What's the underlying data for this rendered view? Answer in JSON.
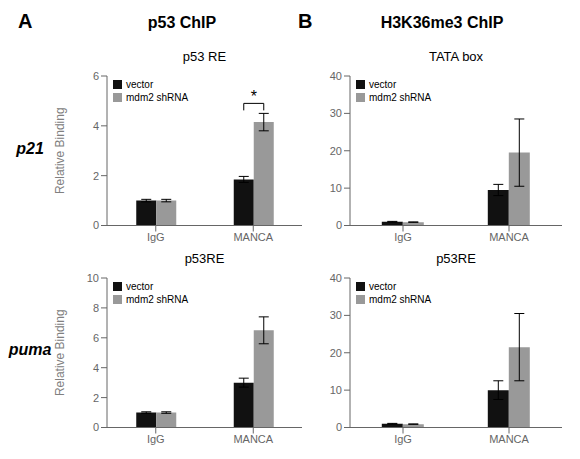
{
  "panels": [
    {
      "label": "A",
      "title": "p53 ChIP"
    },
    {
      "label": "B",
      "title": "H3K36me3 ChIP"
    }
  ],
  "row_labels": [
    "p21",
    "puma"
  ],
  "chart_data": [
    {
      "type": "bar",
      "title": "p53 RE",
      "categories": [
        "IgG",
        "MANCA"
      ],
      "series": [
        {
          "name": "vector",
          "color": "#111111",
          "values": [
            1.0,
            1.85
          ],
          "errors": [
            0.05,
            0.12
          ]
        },
        {
          "name": "mdm2 shRNA",
          "color": "#999999",
          "values": [
            1.0,
            4.15
          ],
          "errors": [
            0.05,
            0.35
          ]
        }
      ],
      "ylabel": "Relative Binding",
      "ylim": [
        0,
        6
      ],
      "yticks": [
        0,
        2,
        4,
        6
      ],
      "grid": false,
      "legend": "upper left",
      "annotations": [
        {
          "text": "*",
          "category": "MANCA"
        }
      ]
    },
    {
      "type": "bar",
      "title": "TATA box",
      "categories": [
        "IgG",
        "MANCA"
      ],
      "series": [
        {
          "name": "vector",
          "color": "#111111",
          "values": [
            1.0,
            9.5
          ],
          "errors": [
            0.1,
            1.5
          ]
        },
        {
          "name": "mdm2 shRNA",
          "color": "#999999",
          "values": [
            0.9,
            19.5
          ],
          "errors": [
            0.05,
            9.0
          ]
        }
      ],
      "ylim": [
        0,
        40
      ],
      "yticks": [
        0,
        10,
        20,
        30,
        40
      ],
      "grid": false,
      "legend": "upper left"
    },
    {
      "type": "bar",
      "title": "p53RE",
      "categories": [
        "IgG",
        "MANCA"
      ],
      "series": [
        {
          "name": "vector",
          "color": "#111111",
          "values": [
            1.0,
            3.0
          ],
          "errors": [
            0.05,
            0.3
          ]
        },
        {
          "name": "mdm2 shRNA",
          "color": "#999999",
          "values": [
            1.0,
            6.5
          ],
          "errors": [
            0.05,
            0.9
          ]
        }
      ],
      "ylabel": "Relative Binding",
      "ylim": [
        0,
        10
      ],
      "yticks": [
        0,
        2,
        4,
        6,
        8,
        10
      ],
      "grid": false,
      "legend": "upper left"
    },
    {
      "type": "bar",
      "title": "p53RE",
      "categories": [
        "IgG",
        "MANCA"
      ],
      "series": [
        {
          "name": "vector",
          "color": "#111111",
          "values": [
            1.0,
            10.0
          ],
          "errors": [
            0.1,
            2.5
          ]
        },
        {
          "name": "mdm2 shRNA",
          "color": "#999999",
          "values": [
            0.9,
            21.5
          ],
          "errors": [
            0.05,
            9.0
          ]
        }
      ],
      "ylim": [
        0,
        40
      ],
      "yticks": [
        0,
        10,
        20,
        30,
        40
      ],
      "grid": false,
      "legend": "upper left"
    }
  ]
}
